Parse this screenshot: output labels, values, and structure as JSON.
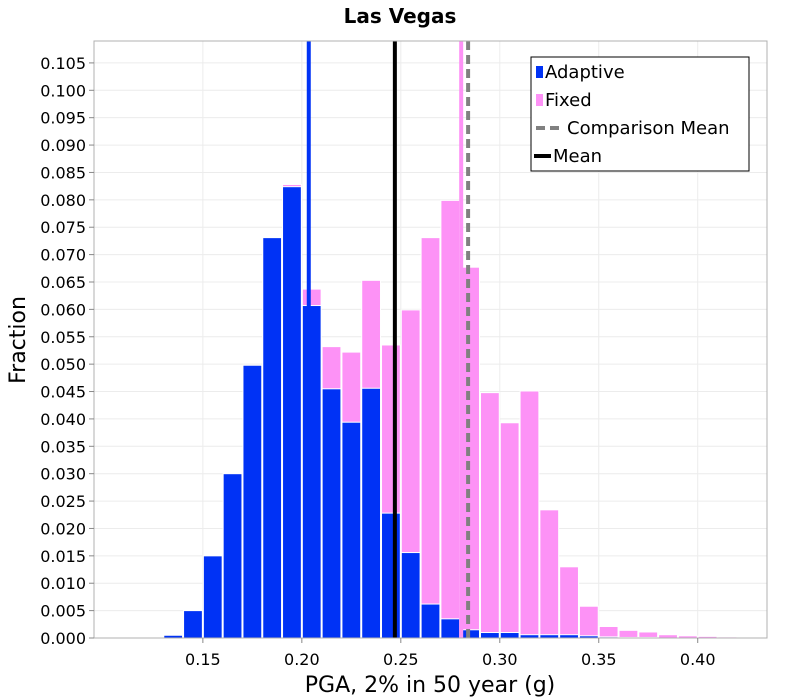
{
  "chart_data": {
    "type": "bar",
    "title": "Las Vegas",
    "xlabel": "PGA, 2% in 50 year (g)",
    "ylabel": "Fraction",
    "xlim": [
      0.095,
      0.435
    ],
    "ylim": [
      0.0,
      0.109
    ],
    "x_ticks": [
      0.15,
      0.2,
      0.25,
      0.3,
      0.35,
      0.4
    ],
    "x_tick_labels": [
      "0.15",
      "0.20",
      "0.25",
      "0.30",
      "0.35",
      "0.40"
    ],
    "y_ticks": [
      0.0,
      0.005,
      0.01,
      0.015,
      0.02,
      0.025,
      0.03,
      0.035,
      0.04,
      0.045,
      0.05,
      0.055,
      0.06,
      0.065,
      0.07,
      0.075,
      0.08,
      0.085,
      0.09,
      0.095,
      0.1,
      0.105
    ],
    "y_tick_labels": [
      "0.000",
      "0.005",
      "0.010",
      "0.015",
      "0.020",
      "0.025",
      "0.030",
      "0.035",
      "0.040",
      "0.045",
      "0.050",
      "0.055",
      "0.060",
      "0.065",
      "0.070",
      "0.075",
      "0.080",
      "0.085",
      "0.090",
      "0.095",
      "0.100",
      "0.105"
    ],
    "grid": true,
    "legend_position": "top-right",
    "bin_width": 0.01,
    "bin_centers": [
      0.135,
      0.145,
      0.155,
      0.165,
      0.175,
      0.185,
      0.195,
      0.205,
      0.215,
      0.225,
      0.235,
      0.245,
      0.255,
      0.265,
      0.275,
      0.285,
      0.295,
      0.305,
      0.315,
      0.325,
      0.335,
      0.345,
      0.355,
      0.365,
      0.375,
      0.385,
      0.395,
      0.405,
      0.415,
      0.425
    ],
    "series": [
      {
        "name": "Fixed",
        "color": "#fd92f6",
        "values": [
          0.0005,
          0.005,
          0.015,
          0.03,
          0.0498,
          0.0731,
          0.0828,
          0.0637,
          0.0532,
          0.0522,
          0.0653,
          0.0535,
          0.0599,
          0.0731,
          0.0799,
          0.0677,
          0.0448,
          0.0393,
          0.0451,
          0.0234,
          0.013,
          0.0058,
          0.0021,
          0.0014,
          0.0011,
          0.0006,
          0.0004,
          0.0003,
          0.0002,
          0.0001
        ]
      },
      {
        "name": "Adaptive",
        "color": "#0032f5",
        "values": [
          0.0005,
          0.005,
          0.015,
          0.03,
          0.0498,
          0.0731,
          0.0824,
          0.0607,
          0.0455,
          0.0394,
          0.0456,
          0.0228,
          0.0156,
          0.0062,
          0.0035,
          0.0015,
          0.001,
          0.001,
          0.0006,
          0.0006,
          0.0006,
          0.0004,
          0.0002,
          0.0001,
          0.0001,
          0.0,
          0.0,
          0.0,
          0.0,
          0.0
        ]
      }
    ],
    "reference_lines": [
      {
        "name": "Mean",
        "x": 0.247,
        "color": "#000000",
        "style": "solid"
      },
      {
        "name": "Comparison Mean",
        "x": 0.284,
        "color": "#808080",
        "style": "dashed"
      },
      {
        "name": "Adaptive peak",
        "x": 0.2035,
        "color": "#0032f5",
        "style": "solid"
      },
      {
        "name": "Fixed peak",
        "x": 0.2805,
        "color": "#fd92f6",
        "style": "solid"
      }
    ],
    "legend": [
      {
        "label": "Adaptive",
        "kind": "patch",
        "color": "#0032f5"
      },
      {
        "label": "Fixed",
        "kind": "patch",
        "color": "#fd92f6"
      },
      {
        "label": "Comparison Mean",
        "kind": "dashed",
        "color": "#808080"
      },
      {
        "label": "Mean",
        "kind": "solid",
        "color": "#000000"
      }
    ]
  }
}
